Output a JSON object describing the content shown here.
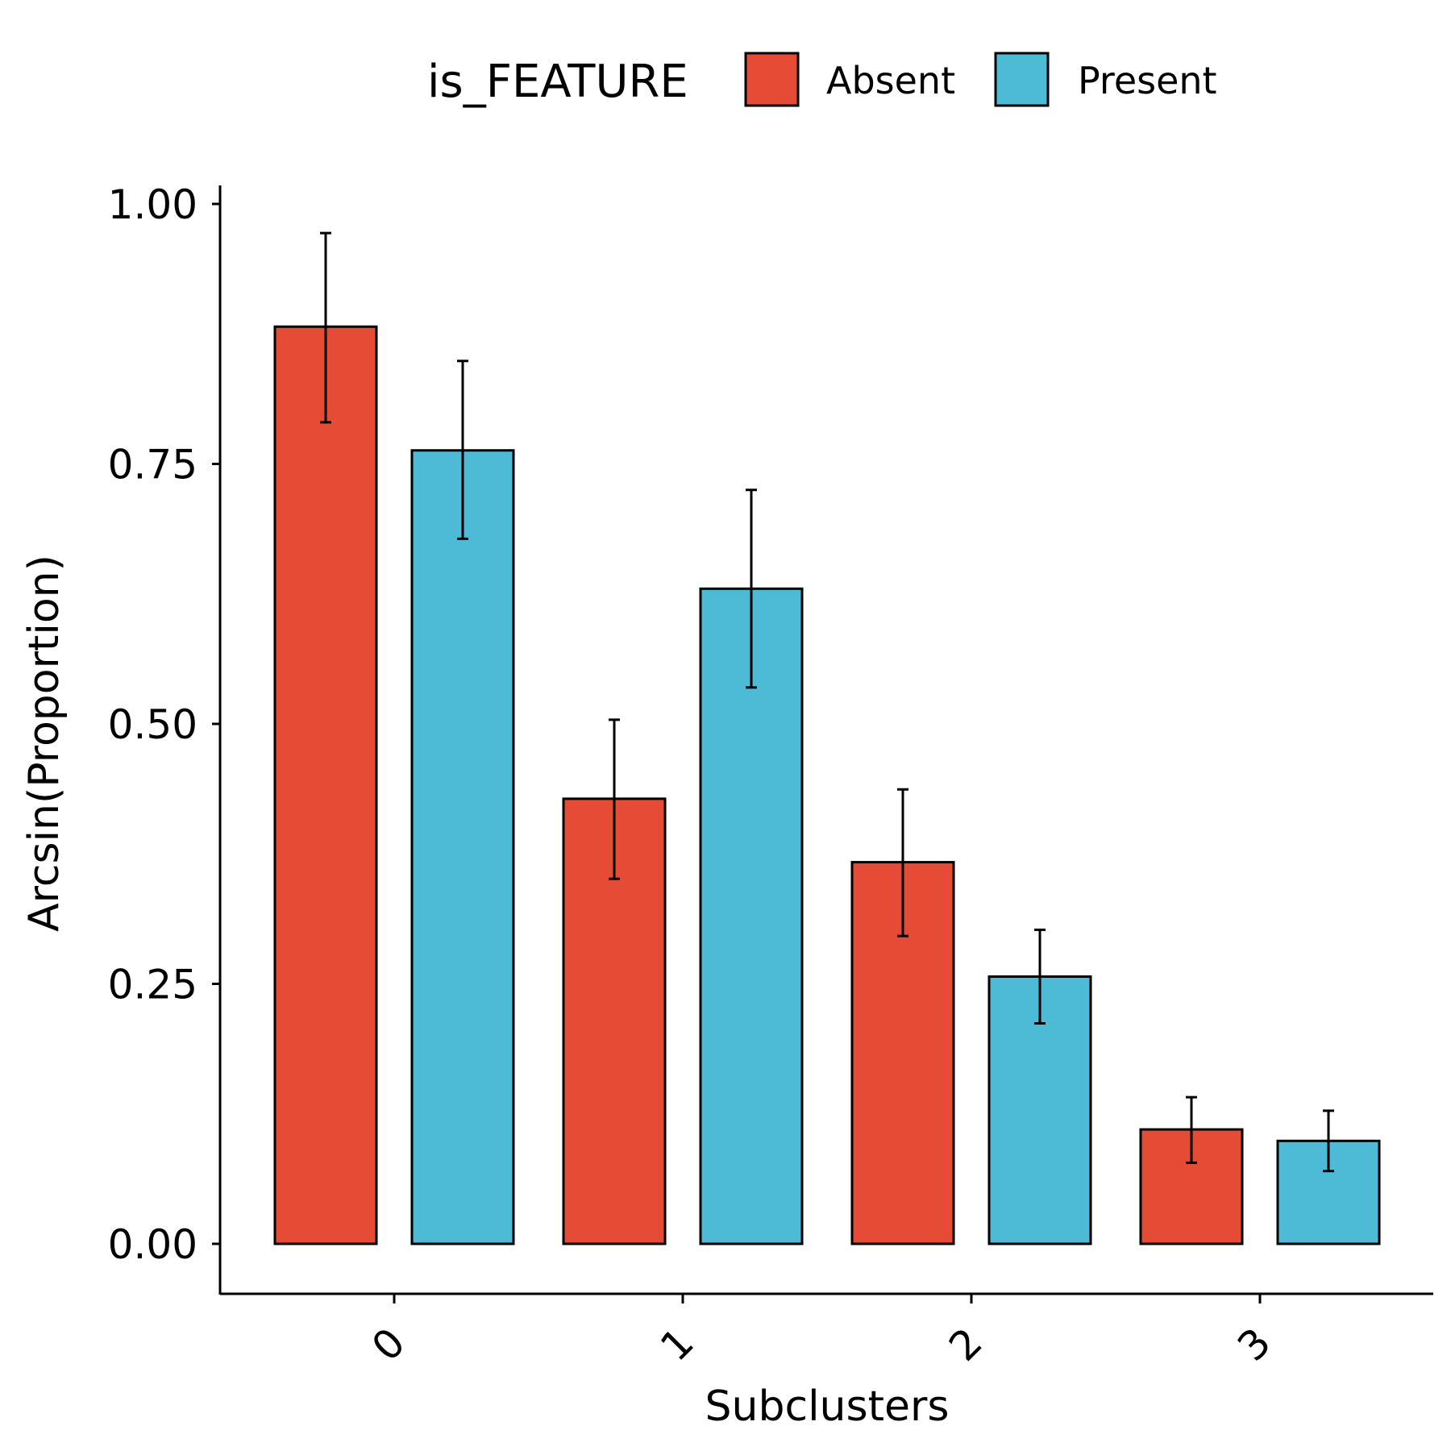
{
  "chart_data": {
    "type": "bar",
    "xlabel": "Subclusters",
    "ylabel": "Arcsin(Proportion)",
    "categories": [
      "0",
      "1",
      "2",
      "3"
    ],
    "ylim": [
      -0.06,
      1.02
    ],
    "yticks": [
      "0.00",
      "0.25",
      "0.50",
      "0.75",
      "1.00"
    ],
    "ytick_values": [
      0,
      0.25,
      0.5,
      0.75,
      1.0
    ],
    "grid": false,
    "legend": {
      "title": "is_FEATURE",
      "placement": "top",
      "entries": [
        {
          "label": "Absent",
          "color": "#E64B35"
        },
        {
          "label": "Present",
          "color": "#4DBBD5"
        }
      ]
    },
    "series": [
      {
        "name": "Absent",
        "color": "#E64B35",
        "values": [
          0.882,
          0.428,
          0.367,
          0.11
        ],
        "err_low": [
          0.79,
          0.351,
          0.296,
          0.078
        ],
        "err_high": [
          0.972,
          0.504,
          0.437,
          0.141
        ]
      },
      {
        "name": "Present",
        "color": "#4DBBD5",
        "values": [
          0.763,
          0.63,
          0.257,
          0.099
        ],
        "err_low": [
          0.678,
          0.535,
          0.212,
          0.07
        ],
        "err_high": [
          0.849,
          0.725,
          0.302,
          0.128
        ]
      }
    ]
  }
}
